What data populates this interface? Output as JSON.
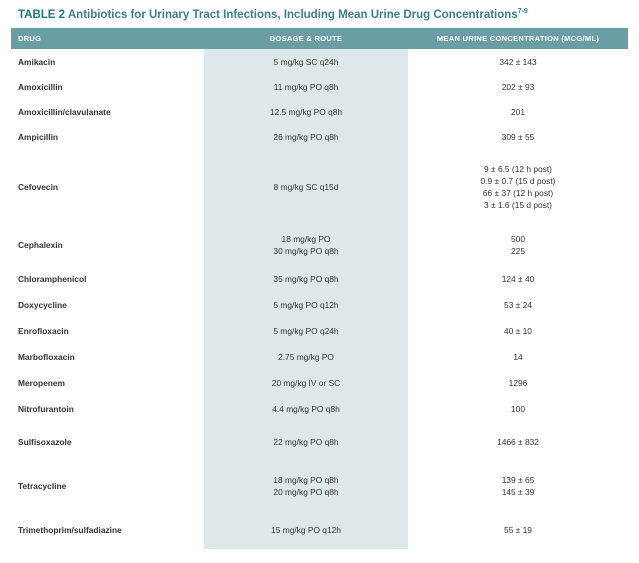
{
  "title": {
    "label": "TABLE 2",
    "text": "Antibiotics for Urinary Tract Infections, Including Mean Urine Drug Concentrations",
    "superscript": "7-9"
  },
  "headers": [
    "DRUG",
    "DOSAGE & ROUTE",
    "MEAN URINE CONCENTRATION (MCG/ML)"
  ],
  "rows": [
    {
      "drug": "Amikacin",
      "dose": [
        "5 mg/kg SC q24h"
      ],
      "conc": [
        "342 ± 143"
      ]
    },
    {
      "drug": "Amoxicillin",
      "dose": [
        "11 mg/kg PO q8h"
      ],
      "conc": [
        "202 ± 93"
      ]
    },
    {
      "drug": "Amoxicillin/clavulanate",
      "dose": [
        "12.5 mg/kg PO q8h"
      ],
      "conc": [
        "201"
      ]
    },
    {
      "drug": "Ampicillin",
      "dose": [
        "26 mg/kg PO q8h"
      ],
      "conc": [
        "309 ± 55"
      ]
    },
    {
      "drug": "Cefovecin",
      "dose": [
        "8 mg/kg SC q15d"
      ],
      "conc": [
        "9 ± 6.5 (12 h post)",
        "0.9 ± 0.7 (15 d post)",
        "66 ± 37 (12 h post)",
        "3 ± 1.6 (15 d post)"
      ]
    },
    {
      "drug": "Cephalexin",
      "dose": [
        "18 mg/kg PO",
        "30 mg/kg PO q8h"
      ],
      "conc": [
        "500",
        "225"
      ]
    },
    {
      "drug": "Chloramphenicol",
      "dose": [
        "35 mg/kg PO q8h"
      ],
      "conc": [
        "124 ± 40"
      ]
    },
    {
      "drug": "Doxycycline",
      "dose": [
        "5 mg/kg PO q12h"
      ],
      "conc": [
        "53 ± 24"
      ]
    },
    {
      "drug": "Enrofloxacin",
      "dose": [
        "5 mg/kg PO q24h"
      ],
      "conc": [
        "40 ± 10"
      ]
    },
    {
      "drug": "Marbofloxacin",
      "dose": [
        "2.75 mg/kg PO"
      ],
      "conc": [
        "14"
      ]
    },
    {
      "drug": "Meropenem",
      "dose": [
        "20 mg/kg IV or SC"
      ],
      "conc": [
        "1296"
      ]
    },
    {
      "drug": "Nitrofurantoin",
      "dose": [
        "4.4 mg/kg PO q8h"
      ],
      "conc": [
        "100"
      ]
    },
    {
      "drug": "Sulfisoxazole",
      "dose": [
        "22 mg/kg PO q8h"
      ],
      "conc": [
        "1466 ± 832"
      ]
    },
    {
      "drug": "Tetracycline",
      "dose": [
        "18 mg/kg PO q8h",
        "20 mg/kg PO q8h"
      ],
      "conc": [
        "139 ± 65",
        "145 ± 39"
      ]
    },
    {
      "drug": "Trimethoprim/sulfadiazine",
      "dose": [
        "15 mg/kg PO q12h"
      ],
      "conc": [
        "55 ± 19"
      ]
    }
  ]
}
